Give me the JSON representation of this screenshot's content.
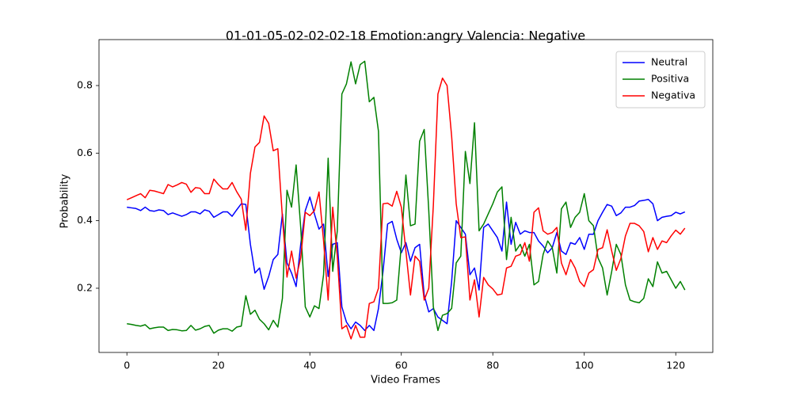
{
  "chart_data": {
    "type": "line",
    "title": "01-01-05-02-02-02-18 Emotion:angry Valencia: Negative",
    "x_label": "Video Frames",
    "y_label": "Probability",
    "x": [
      0,
      1,
      2,
      3,
      4,
      5,
      6,
      7,
      8,
      9,
      10,
      11,
      12,
      13,
      14,
      15,
      16,
      17,
      18,
      19,
      20,
      21,
      22,
      23,
      24,
      25,
      26,
      27,
      28,
      29,
      30,
      31,
      32,
      33,
      34,
      35,
      36,
      37,
      38,
      39,
      40,
      41,
      42,
      43,
      44,
      45,
      46,
      47,
      48,
      49,
      50,
      51,
      52,
      53,
      54,
      55,
      56,
      57,
      58,
      59,
      60,
      61,
      62,
      63,
      64,
      65,
      66,
      67,
      68,
      69,
      70,
      71,
      72,
      73,
      74,
      75,
      76,
      77,
      78,
      79,
      80,
      81,
      82,
      83,
      84,
      85,
      86,
      87,
      88,
      89,
      90,
      91,
      92,
      93,
      94,
      95,
      96,
      97,
      98,
      99,
      100,
      101,
      102,
      103,
      104,
      105,
      106,
      107,
      108,
      109,
      110,
      111,
      112,
      113,
      114,
      115,
      116,
      117,
      118,
      119,
      120,
      121,
      122
    ],
    "series": [
      {
        "name": "Neutral",
        "color": "#0000ff",
        "values": [
          0.44,
          0.438,
          0.436,
          0.43,
          0.44,
          0.43,
          0.428,
          0.432,
          0.43,
          0.418,
          0.423,
          0.418,
          0.413,
          0.418,
          0.426,
          0.426,
          0.42,
          0.432,
          0.428,
          0.41,
          0.418,
          0.426,
          0.426,
          0.413,
          0.432,
          0.45,
          0.448,
          0.33,
          0.245,
          0.26,
          0.197,
          0.235,
          0.285,
          0.3,
          0.42,
          0.275,
          0.245,
          0.205,
          0.33,
          0.43,
          0.47,
          0.42,
          0.375,
          0.39,
          0.235,
          0.33,
          0.335,
          0.145,
          0.1,
          0.08,
          0.1,
          0.09,
          0.075,
          0.09,
          0.075,
          0.14,
          0.25,
          0.39,
          0.398,
          0.345,
          0.305,
          0.335,
          0.28,
          0.32,
          0.33,
          0.18,
          0.13,
          0.14,
          0.115,
          0.105,
          0.095,
          0.22,
          0.4,
          0.38,
          0.36,
          0.24,
          0.26,
          0.195,
          0.38,
          0.39,
          0.37,
          0.35,
          0.31,
          0.455,
          0.33,
          0.395,
          0.36,
          0.37,
          0.365,
          0.365,
          0.34,
          0.325,
          0.305,
          0.32,
          0.365,
          0.31,
          0.3,
          0.335,
          0.33,
          0.35,
          0.315,
          0.36,
          0.36,
          0.4,
          0.425,
          0.448,
          0.443,
          0.415,
          0.423,
          0.44,
          0.44,
          0.445,
          0.458,
          0.46,
          0.463,
          0.45,
          0.4,
          0.41,
          0.413,
          0.415,
          0.425,
          0.42,
          0.426
        ]
      },
      {
        "name": "Positiva",
        "color": "#008000",
        "values": [
          0.095,
          0.093,
          0.09,
          0.088,
          0.092,
          0.08,
          0.083,
          0.085,
          0.085,
          0.075,
          0.078,
          0.077,
          0.074,
          0.075,
          0.09,
          0.076,
          0.08,
          0.087,
          0.09,
          0.067,
          0.076,
          0.08,
          0.08,
          0.073,
          0.085,
          0.088,
          0.178,
          0.123,
          0.135,
          0.108,
          0.095,
          0.077,
          0.105,
          0.085,
          0.17,
          0.49,
          0.44,
          0.565,
          0.38,
          0.145,
          0.115,
          0.148,
          0.14,
          0.24,
          0.585,
          0.25,
          0.37,
          0.775,
          0.805,
          0.87,
          0.805,
          0.862,
          0.872,
          0.752,
          0.765,
          0.665,
          0.155,
          0.155,
          0.157,
          0.165,
          0.33,
          0.535,
          0.385,
          0.39,
          0.635,
          0.67,
          0.43,
          0.145,
          0.075,
          0.12,
          0.125,
          0.14,
          0.275,
          0.295,
          0.605,
          0.51,
          0.69,
          0.37,
          0.39,
          0.42,
          0.45,
          0.485,
          0.5,
          0.285,
          0.41,
          0.31,
          0.33,
          0.295,
          0.33,
          0.21,
          0.22,
          0.3,
          0.34,
          0.32,
          0.245,
          0.435,
          0.455,
          0.38,
          0.41,
          0.425,
          0.48,
          0.4,
          0.385,
          0.29,
          0.26,
          0.18,
          0.25,
          0.33,
          0.3,
          0.21,
          0.165,
          0.16,
          0.157,
          0.17,
          0.228,
          0.205,
          0.278,
          0.245,
          0.25,
          0.225,
          0.2,
          0.22,
          0.195
        ]
      },
      {
        "name": "Negativa",
        "color": "#ff0000",
        "values": [
          0.462,
          0.468,
          0.474,
          0.48,
          0.468,
          0.49,
          0.488,
          0.484,
          0.48,
          0.507,
          0.5,
          0.506,
          0.513,
          0.508,
          0.484,
          0.498,
          0.496,
          0.48,
          0.48,
          0.523,
          0.507,
          0.494,
          0.494,
          0.513,
          0.486,
          0.464,
          0.372,
          0.54,
          0.618,
          0.632,
          0.71,
          0.688,
          0.607,
          0.613,
          0.41,
          0.233,
          0.31,
          0.23,
          0.29,
          0.425,
          0.415,
          0.43,
          0.485,
          0.34,
          0.165,
          0.44,
          0.295,
          0.08,
          0.09,
          0.05,
          0.09,
          0.055,
          0.055,
          0.155,
          0.16,
          0.2,
          0.45,
          0.452,
          0.443,
          0.487,
          0.44,
          0.31,
          0.18,
          0.295,
          0.28,
          0.165,
          0.2,
          0.445,
          0.775,
          0.822,
          0.8,
          0.65,
          0.45,
          0.35,
          0.352,
          0.165,
          0.225,
          0.115,
          0.232,
          0.21,
          0.198,
          0.18,
          0.183,
          0.26,
          0.265,
          0.295,
          0.3,
          0.335,
          0.28,
          0.425,
          0.438,
          0.37,
          0.36,
          0.365,
          0.38,
          0.275,
          0.24,
          0.285,
          0.26,
          0.22,
          0.205,
          0.245,
          0.255,
          0.315,
          0.32,
          0.373,
          0.31,
          0.253,
          0.288,
          0.355,
          0.392,
          0.392,
          0.385,
          0.368,
          0.308,
          0.35,
          0.315,
          0.34,
          0.335,
          0.355,
          0.372,
          0.36,
          0.378
        ]
      }
    ],
    "xlim": [
      -6.1,
      128.1
    ],
    "ylim": [
      0.01,
      0.936
    ],
    "xticks": [
      0,
      20,
      40,
      60,
      80,
      100,
      120
    ],
    "yticks": [
      0.2,
      0.4,
      0.6,
      0.8
    ],
    "legend": "upper right"
  }
}
